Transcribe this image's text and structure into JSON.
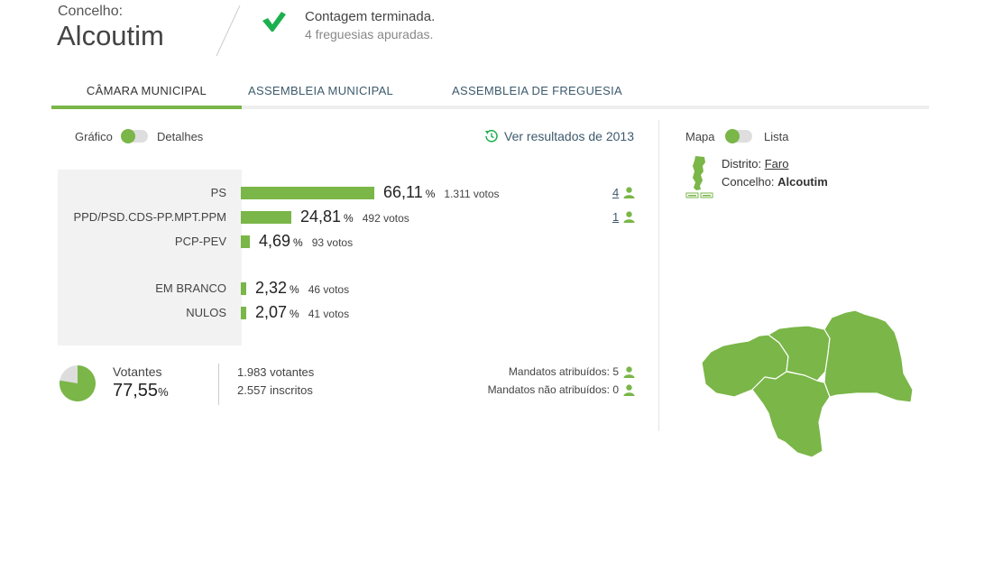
{
  "header": {
    "label": "Concelho:",
    "name": "Alcoutim",
    "status_title": "Contagem terminada.",
    "status_sub": "4 freguesias apuradas."
  },
  "tabs": [
    {
      "label": "CÂMARA MUNICIPAL",
      "active": true
    },
    {
      "label": "ASSEMBLEIA MUNICIPAL",
      "active": false
    },
    {
      "label": "ASSEMBLEIA DE FREGUESIA",
      "active": false
    }
  ],
  "view_toggle": {
    "left": "Gráfico",
    "right": "Detalhes"
  },
  "map_toggle": {
    "left": "Mapa",
    "right": "Lista"
  },
  "previous_results": "Ver resultados de 2013",
  "results": [
    {
      "party": "PS",
      "pct": "66,11",
      "pct_sign": "%",
      "votes": "1.311 votos",
      "value": 66.11,
      "mandates": "4"
    },
    {
      "party": "PPD/PSD.CDS-PP.MPT.PPM",
      "pct": "24,81",
      "pct_sign": "%",
      "votes": "492 votos",
      "value": 24.81,
      "mandates": "1"
    },
    {
      "party": "PCP-PEV",
      "pct": "4,69",
      "pct_sign": "%",
      "votes": "93 votos",
      "value": 4.69,
      "mandates": ""
    },
    {
      "party": "EM BRANCO",
      "pct": "2,32",
      "pct_sign": "%",
      "votes": "46 votos",
      "value": 2.32,
      "mandates": ""
    },
    {
      "party": "NULOS",
      "pct": "2,07",
      "pct_sign": "%",
      "votes": "41 votos",
      "value": 2.07,
      "mandates": ""
    }
  ],
  "turnout": {
    "label": "Votantes",
    "pct": "77,55",
    "pct_sign": "%",
    "value": 77.55,
    "voters": "1.983 votantes",
    "registered": "2.557 inscritos"
  },
  "mandates": {
    "assigned": "Mandatos atribuídos: 5",
    "unassigned": "Mandatos não atribuídos: 0"
  },
  "location": {
    "district_label": "Distrito:",
    "district": "Faro",
    "municipality_label": "Concelho:",
    "municipality": "Alcoutim"
  },
  "colors": {
    "accent": "#7ab648",
    "link": "#3d5a6c",
    "map": "#7ab648"
  }
}
